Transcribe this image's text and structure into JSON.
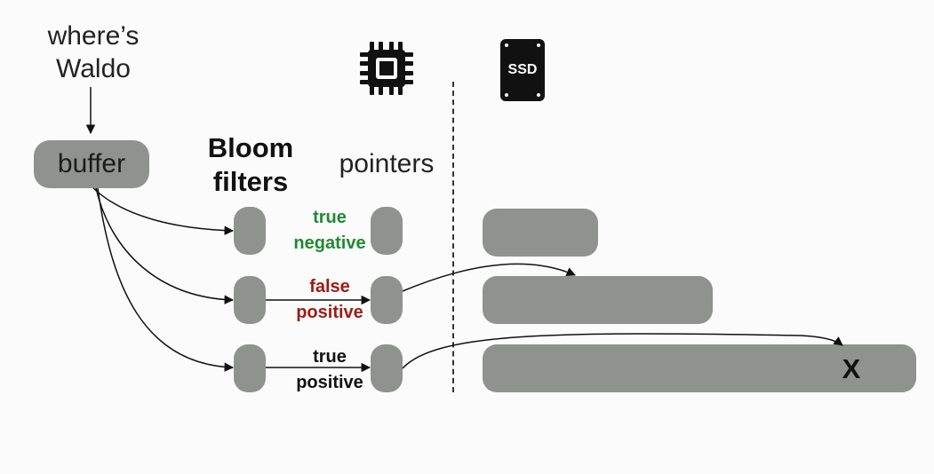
{
  "query": {
    "line1": "where’s",
    "line2": "Waldo"
  },
  "buffer": {
    "label": "buffer"
  },
  "bloom_filters": {
    "line1": "Bloom",
    "line2": "filters"
  },
  "pointers": {
    "label": "pointers"
  },
  "rows": [
    {
      "label_line1": "true",
      "label_line2": "negative",
      "status_color": "#1f8a32"
    },
    {
      "label_line1": "false",
      "label_line2": "positive",
      "status_color": "#9e1c16"
    },
    {
      "label_line1": "true",
      "label_line2": "positive",
      "status_color": "#111111"
    }
  ],
  "ssd": {
    "label": "SSD",
    "icon": "ssd-icon"
  },
  "cpu": {
    "icon": "cpu-chip-icon"
  },
  "target": {
    "mark": "X"
  }
}
